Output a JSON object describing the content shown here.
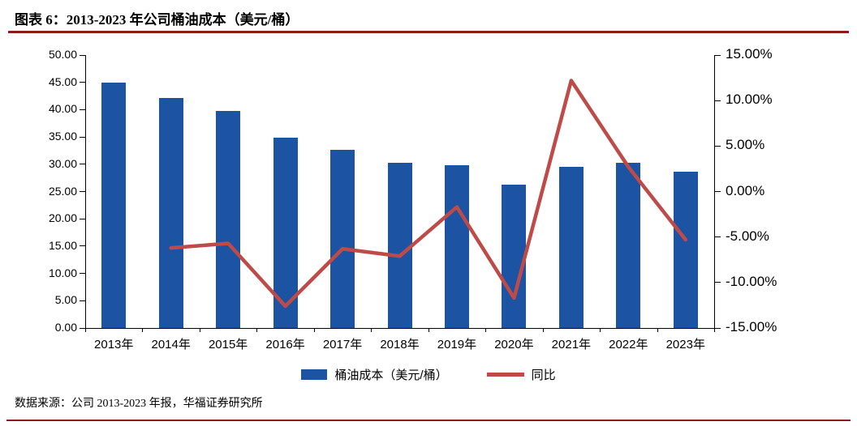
{
  "header": {
    "title": "图表 6：2013-2023 年公司桶油成本（美元/桶）"
  },
  "footer": {
    "source": "数据来源：公司 2013-2023 年报，华福证券研究所"
  },
  "colors": {
    "bar": "#1C53A3",
    "line": "#BE4B48",
    "rule": "#8B1A1A",
    "bottom_rule": "#8B1A1A",
    "axis": "#000000"
  },
  "chart_data": {
    "type": "bar+line",
    "title": "图表 6：2013-2023 年公司桶油成本（美元/桶）",
    "categories": [
      "2013年",
      "2014年",
      "2015年",
      "2016年",
      "2017年",
      "2018年",
      "2019年",
      "2020年",
      "2021年",
      "2022年",
      "2023年"
    ],
    "series": [
      {
        "name": "桶油成本（美元/桶）",
        "type": "bar",
        "axis": "left",
        "values": [
          45.0,
          42.2,
          39.8,
          34.8,
          32.6,
          30.3,
          29.8,
          26.3,
          29.5,
          30.3,
          28.7
        ]
      },
      {
        "name": "同比",
        "type": "line",
        "axis": "right",
        "values": [
          null,
          -6.2,
          -5.7,
          -12.6,
          -6.3,
          -7.1,
          -1.7,
          -11.7,
          12.2,
          2.7,
          -5.3
        ]
      }
    ],
    "left_axis": {
      "min": 0,
      "max": 50,
      "step": 5,
      "tick_labels": [
        "50.00",
        "45.00",
        "40.00",
        "35.00",
        "30.00",
        "25.00",
        "20.00",
        "15.00",
        "10.00",
        "5.00",
        "0.00"
      ]
    },
    "right_axis": {
      "min": -15,
      "max": 15,
      "step": 5,
      "tick_labels": [
        "15.00%",
        "10.00%",
        "5.00%",
        "0.00%",
        "-5.00%",
        "-10.00%",
        "-15.00%"
      ]
    },
    "grid": false,
    "legend_position": "bottom",
    "legend": [
      "桶油成本（美元/桶）",
      "同比"
    ]
  }
}
